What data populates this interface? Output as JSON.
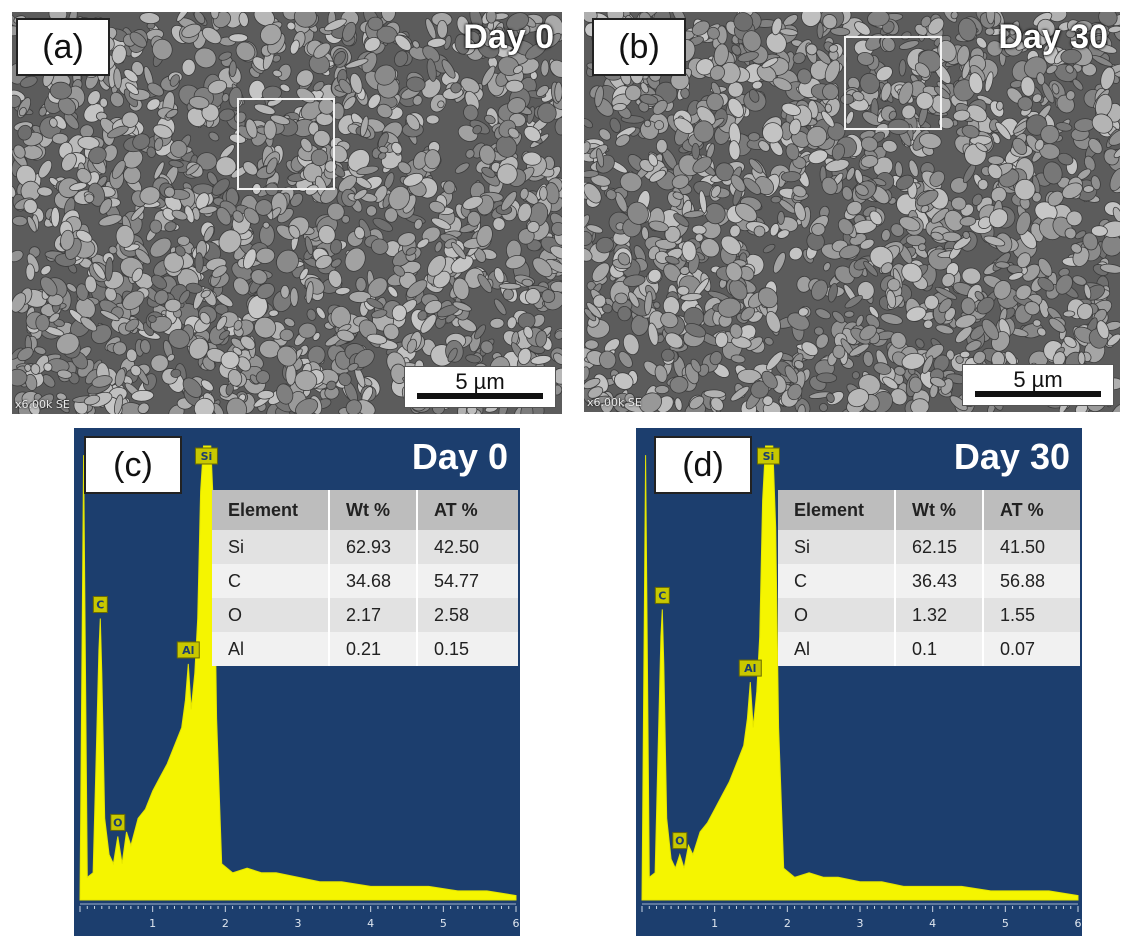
{
  "figure": {
    "panels": [
      {
        "id": "a",
        "label": "(a)",
        "day": "Day 0",
        "footer": "x6.00k SE",
        "scale": "5 µm"
      },
      {
        "id": "b",
        "label": "(b)",
        "day": "Day 30",
        "footer": "x6.00k SE",
        "scale": "5 µm"
      },
      {
        "id": "c",
        "label": "(c)",
        "day": "Day 0"
      },
      {
        "id": "d",
        "label": "(d)",
        "day": "Day 30"
      }
    ]
  },
  "colors": {
    "eds_background": "#1c3e6e",
    "spectrum": "#f5f500",
    "table_header": "#bdbdbd"
  },
  "tables": {
    "c": {
      "headers": [
        "Element",
        "Wt %",
        "AT %"
      ],
      "rows": [
        [
          "Si",
          "62.93",
          "42.50"
        ],
        [
          "C",
          "34.68",
          "54.77"
        ],
        [
          "O",
          "2.17",
          "2.58"
        ],
        [
          "Al",
          "0.21",
          "0.15"
        ]
      ]
    },
    "d": {
      "headers": [
        "Element",
        "Wt %",
        "AT %"
      ],
      "rows": [
        [
          "Si",
          "62.15",
          "41.50"
        ],
        [
          "C",
          "36.43",
          "56.88"
        ],
        [
          "O",
          "1.32",
          "1.55"
        ],
        [
          "Al",
          "0.1",
          "0.07"
        ]
      ]
    }
  },
  "chart_data": [
    {
      "type": "area",
      "panel": "c",
      "xlim": [
        0,
        6
      ],
      "xticks": [
        "1",
        "2",
        "3",
        "4",
        "5",
        "6"
      ],
      "peaks": [
        {
          "label": "C",
          "x": 0.28
        },
        {
          "label": "O",
          "x": 0.52
        },
        {
          "label": "Al",
          "x": 1.49
        },
        {
          "label": "Si",
          "x": 1.74
        }
      ],
      "x": [
        0.0,
        0.05,
        0.1,
        0.18,
        0.22,
        0.26,
        0.28,
        0.3,
        0.34,
        0.4,
        0.46,
        0.52,
        0.58,
        0.64,
        0.7,
        0.8,
        0.9,
        1.0,
        1.1,
        1.2,
        1.3,
        1.4,
        1.45,
        1.49,
        1.53,
        1.58,
        1.62,
        1.66,
        1.7,
        1.74,
        1.8,
        1.84,
        1.88,
        1.95,
        2.1,
        2.3,
        2.5,
        2.7,
        3.0,
        3.3,
        3.6,
        4.0,
        4.4,
        4.8,
        5.2,
        5.6,
        6.0
      ],
      "y": [
        0,
        98,
        5,
        6,
        30,
        55,
        62,
        50,
        18,
        10,
        8,
        14,
        8,
        15,
        12,
        18,
        20,
        24,
        27,
        30,
        34,
        38,
        44,
        52,
        42,
        50,
        62,
        90,
        100,
        100,
        100,
        85,
        40,
        8,
        6,
        7,
        6,
        6,
        5,
        4,
        4,
        3,
        3,
        3,
        2,
        2,
        1
      ],
      "ylim": [
        0,
        100
      ]
    },
    {
      "type": "area",
      "panel": "d",
      "xlim": [
        0,
        6
      ],
      "xticks": [
        "1",
        "2",
        "3",
        "4",
        "5",
        "6"
      ],
      "peaks": [
        {
          "label": "C",
          "x": 0.28
        },
        {
          "label": "O",
          "x": 0.52
        },
        {
          "label": "Al",
          "x": 1.49
        },
        {
          "label": "Si",
          "x": 1.74
        }
      ],
      "x": [
        0.0,
        0.05,
        0.1,
        0.18,
        0.22,
        0.26,
        0.28,
        0.3,
        0.34,
        0.4,
        0.46,
        0.52,
        0.58,
        0.64,
        0.7,
        0.8,
        0.9,
        1.0,
        1.1,
        1.2,
        1.3,
        1.4,
        1.45,
        1.49,
        1.53,
        1.58,
        1.62,
        1.66,
        1.7,
        1.74,
        1.8,
        1.84,
        1.88,
        1.95,
        2.1,
        2.3,
        2.5,
        2.7,
        3.0,
        3.3,
        3.6,
        4.0,
        4.4,
        4.8,
        5.2,
        5.6,
        6.0
      ],
      "y": [
        0,
        98,
        5,
        6,
        32,
        58,
        64,
        52,
        18,
        9,
        7,
        10,
        7,
        12,
        10,
        15,
        17,
        20,
        23,
        26,
        30,
        34,
        40,
        48,
        38,
        46,
        58,
        88,
        100,
        100,
        100,
        82,
        38,
        7,
        5,
        6,
        5,
        5,
        4,
        4,
        3,
        3,
        3,
        2,
        2,
        2,
        1
      ],
      "ylim": [
        0,
        100
      ]
    }
  ]
}
